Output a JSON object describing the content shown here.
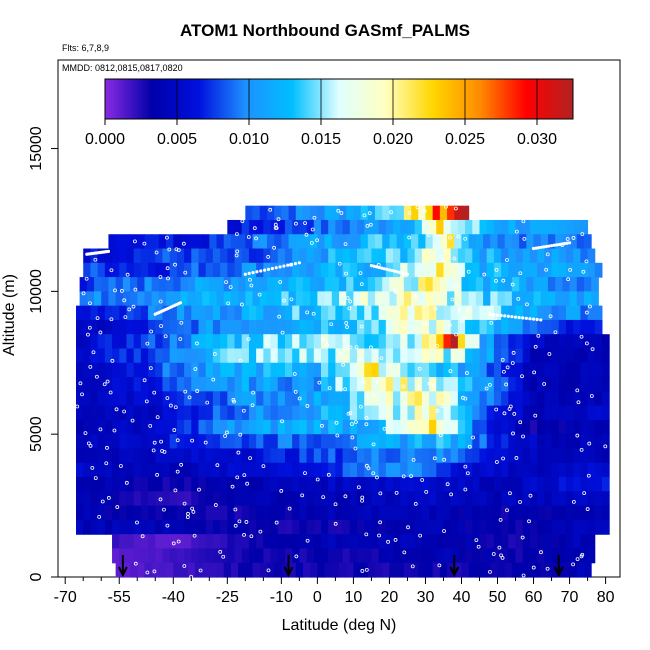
{
  "chart_data": {
    "type": "heatmap",
    "title": "ATOM1 Northbound GASmf_PALMS",
    "subtitle_flights": "Flts: 6,7,8,9",
    "subtitle_dates": "MMDD: 0812,0815,0817,0820",
    "xlabel": "Latitude (deg N)",
    "ylabel": "Altitude (m)",
    "xlim": [
      -72,
      84
    ],
    "ylim": [
      0,
      18100
    ],
    "x_ticks": [
      -70,
      -55,
      -40,
      -25,
      -10,
      0,
      10,
      20,
      30,
      40,
      50,
      60,
      70,
      80
    ],
    "x_minor_ticks": [
      -65,
      -60,
      -50,
      -45,
      -35,
      -30,
      -20,
      -15,
      -5,
      5,
      15,
      25,
      35,
      45,
      55,
      65,
      75
    ],
    "y_ticks": [
      0,
      5000,
      10000,
      15000
    ],
    "colorbar": {
      "min": 0,
      "max": 0.0325,
      "tick_values": [
        0.0,
        0.005,
        0.01,
        0.015,
        0.02,
        0.025,
        0.03
      ],
      "tick_labels": [
        "0.000",
        "0.005",
        "0.010",
        "0.015",
        "0.020",
        "0.025",
        "0.030"
      ],
      "colors": [
        "#8a2be2",
        "#0000aa",
        "#0010dd",
        "#1e90ff",
        "#00bfff",
        "#e0ffff",
        "#ffffc0",
        "#ffd700",
        "#ff8c00",
        "#ff0000",
        "#b22222"
      ]
    },
    "flight_date_markers_lat": [
      -54,
      -8,
      38,
      67
    ],
    "rows": [
      {
        "alt": 12500,
        "lat_min": -20,
        "lat_max": 41,
        "band": [
          [
            -20,
            0.008
          ],
          [
            0,
            0.01
          ],
          [
            15,
            0.013
          ],
          [
            25,
            0.018
          ],
          [
            32,
            0.024
          ],
          [
            37,
            0.029
          ],
          [
            40,
            0.032
          ]
        ]
      },
      {
        "alt": 12000,
        "lat_min": -25,
        "lat_max": 75,
        "band": [
          [
            -25,
            0.006
          ],
          [
            -5,
            0.008
          ],
          [
            15,
            0.01
          ],
          [
            28,
            0.014
          ],
          [
            34,
            0.02
          ],
          [
            38,
            0.016
          ],
          [
            50,
            0.012
          ],
          [
            65,
            0.01
          ]
        ]
      },
      {
        "alt": 11500,
        "lat_min": -58,
        "lat_max": 75,
        "band": [
          [
            -58,
            0.007
          ],
          [
            -35,
            0.006
          ],
          [
            -10,
            0.01
          ],
          [
            10,
            0.012
          ],
          [
            30,
            0.015
          ],
          [
            36,
            0.021
          ],
          [
            45,
            0.011
          ],
          [
            65,
            0.009
          ]
        ]
      },
      {
        "alt": 11000,
        "lat_min": -65,
        "lat_max": 77,
        "band": [
          [
            -65,
            0.006
          ],
          [
            -40,
            0.008
          ],
          [
            -15,
            0.007
          ],
          [
            5,
            0.012
          ],
          [
            25,
            0.014
          ],
          [
            35,
            0.019
          ],
          [
            45,
            0.012
          ],
          [
            70,
            0.01
          ]
        ]
      },
      {
        "alt": 10500,
        "lat_min": -65,
        "lat_max": 78,
        "band": [
          [
            -65,
            0.008
          ],
          [
            -45,
            0.007
          ],
          [
            -20,
            0.01
          ],
          [
            0,
            0.011
          ],
          [
            20,
            0.013
          ],
          [
            33,
            0.02
          ],
          [
            45,
            0.012
          ],
          [
            70,
            0.011
          ]
        ]
      },
      {
        "alt": 10000,
        "lat_min": -66,
        "lat_max": 78,
        "band": [
          [
            -66,
            0.007
          ],
          [
            -50,
            0.009
          ],
          [
            -25,
            0.011
          ],
          [
            0,
            0.013
          ],
          [
            20,
            0.015
          ],
          [
            30,
            0.019
          ],
          [
            45,
            0.013
          ],
          [
            60,
            0.011
          ],
          [
            75,
            0.01
          ]
        ]
      },
      {
        "alt": 9500,
        "lat_min": -66,
        "lat_max": 78,
        "band": [
          [
            -66,
            0.009
          ],
          [
            -45,
            0.011
          ],
          [
            -20,
            0.012
          ],
          [
            0,
            0.014
          ],
          [
            15,
            0.018
          ],
          [
            30,
            0.02
          ],
          [
            45,
            0.014
          ],
          [
            65,
            0.011
          ]
        ]
      },
      {
        "alt": 9000,
        "lat_min": -67,
        "lat_max": 78,
        "band": [
          [
            -67,
            0.006
          ],
          [
            -45,
            0.009
          ],
          [
            -25,
            0.011
          ],
          [
            -5,
            0.013
          ],
          [
            15,
            0.016
          ],
          [
            32,
            0.019
          ],
          [
            45,
            0.015
          ],
          [
            65,
            0.01
          ]
        ]
      },
      {
        "alt": 8500,
        "lat_min": -67,
        "lat_max": 78,
        "band": [
          [
            -67,
            0.004
          ],
          [
            -50,
            0.006
          ],
          [
            -30,
            0.01
          ],
          [
            -10,
            0.012
          ],
          [
            10,
            0.014
          ],
          [
            30,
            0.018
          ],
          [
            40,
            0.016
          ],
          [
            55,
            0.01
          ],
          [
            70,
            0.006
          ]
        ]
      },
      {
        "alt": 8000,
        "lat_min": -67,
        "lat_max": 80,
        "band": [
          [
            -67,
            0.005
          ],
          [
            -45,
            0.008
          ],
          [
            -25,
            0.013
          ],
          [
            -5,
            0.016
          ],
          [
            15,
            0.015
          ],
          [
            30,
            0.018
          ],
          [
            38,
            0.03
          ],
          [
            45,
            0.012
          ],
          [
            60,
            0.005
          ],
          [
            75,
            0.004
          ]
        ]
      },
      {
        "alt": 7500,
        "lat_min": -67,
        "lat_max": 80,
        "band": [
          [
            -67,
            0.005
          ],
          [
            -45,
            0.008
          ],
          [
            -25,
            0.014
          ],
          [
            -5,
            0.015
          ],
          [
            15,
            0.016
          ],
          [
            35,
            0.017
          ],
          [
            45,
            0.013
          ],
          [
            60,
            0.004
          ],
          [
            75,
            0.004
          ]
        ]
      },
      {
        "alt": 7000,
        "lat_min": -67,
        "lat_max": 80,
        "band": [
          [
            -67,
            0.004
          ],
          [
            -45,
            0.008
          ],
          [
            -20,
            0.012
          ],
          [
            0,
            0.012
          ],
          [
            15,
            0.02
          ],
          [
            30,
            0.014
          ],
          [
            45,
            0.01
          ],
          [
            60,
            0.004
          ],
          [
            75,
            0.004
          ]
        ]
      },
      {
        "alt": 6500,
        "lat_min": -67,
        "lat_max": 80,
        "band": [
          [
            -67,
            0.004
          ],
          [
            -45,
            0.007
          ],
          [
            -20,
            0.011
          ],
          [
            0,
            0.01
          ],
          [
            15,
            0.021
          ],
          [
            30,
            0.017
          ],
          [
            45,
            0.011
          ],
          [
            60,
            0.004
          ],
          [
            75,
            0.004
          ]
        ]
      },
      {
        "alt": 6000,
        "lat_min": -67,
        "lat_max": 80,
        "band": [
          [
            -67,
            0.004
          ],
          [
            -45,
            0.006
          ],
          [
            -20,
            0.01
          ],
          [
            0,
            0.011
          ],
          [
            15,
            0.016
          ],
          [
            32,
            0.019
          ],
          [
            45,
            0.01
          ],
          [
            60,
            0.004
          ],
          [
            75,
            0.004
          ]
        ]
      },
      {
        "alt": 5500,
        "lat_min": -67,
        "lat_max": 80,
        "band": [
          [
            -67,
            0.004
          ],
          [
            -45,
            0.005
          ],
          [
            -25,
            0.009
          ],
          [
            -5,
            0.011
          ],
          [
            15,
            0.014
          ],
          [
            32,
            0.018
          ],
          [
            45,
            0.009
          ],
          [
            60,
            0.004
          ],
          [
            75,
            0.005
          ]
        ]
      },
      {
        "alt": 5000,
        "lat_min": -67,
        "lat_max": 80,
        "band": [
          [
            -67,
            0.004
          ],
          [
            -45,
            0.005
          ],
          [
            -25,
            0.01
          ],
          [
            -5,
            0.012
          ],
          [
            15,
            0.012
          ],
          [
            32,
            0.02
          ],
          [
            45,
            0.008
          ],
          [
            60,
            0.003
          ],
          [
            75,
            0.004
          ]
        ]
      },
      {
        "alt": 4500,
        "lat_min": -67,
        "lat_max": 80,
        "band": [
          [
            -67,
            0.004
          ],
          [
            -45,
            0.006
          ],
          [
            -25,
            0.008
          ],
          [
            0,
            0.009
          ],
          [
            20,
            0.011
          ],
          [
            35,
            0.013
          ],
          [
            50,
            0.007
          ],
          [
            65,
            0.004
          ]
        ]
      },
      {
        "alt": 4000,
        "lat_min": -67,
        "lat_max": 80,
        "band": [
          [
            -67,
            0.004
          ],
          [
            -40,
            0.005
          ],
          [
            -20,
            0.006
          ],
          [
            5,
            0.008
          ],
          [
            25,
            0.01
          ],
          [
            40,
            0.009
          ],
          [
            55,
            0.005
          ],
          [
            70,
            0.004
          ]
        ]
      },
      {
        "alt": 3500,
        "lat_min": -67,
        "lat_max": 80,
        "band": [
          [
            -67,
            0.005
          ],
          [
            -40,
            0.004
          ],
          [
            -15,
            0.006
          ],
          [
            5,
            0.007
          ],
          [
            25,
            0.011
          ],
          [
            40,
            0.006
          ],
          [
            60,
            0.004
          ],
          [
            75,
            0.006
          ]
        ]
      },
      {
        "alt": 3000,
        "lat_min": -67,
        "lat_max": 80,
        "band": [
          [
            -67,
            0.004
          ],
          [
            -40,
            0.003
          ],
          [
            -15,
            0.004
          ],
          [
            10,
            0.005
          ],
          [
            30,
            0.006
          ],
          [
            50,
            0.004
          ],
          [
            70,
            0.006
          ]
        ]
      },
      {
        "alt": 2500,
        "lat_min": -67,
        "lat_max": 80,
        "band": [
          [
            -67,
            0.004
          ],
          [
            -40,
            0.002
          ],
          [
            -15,
            0.004
          ],
          [
            10,
            0.004
          ],
          [
            30,
            0.005
          ],
          [
            50,
            0.004
          ],
          [
            70,
            0.005
          ]
        ]
      },
      {
        "alt": 2000,
        "lat_min": -67,
        "lat_max": 80,
        "band": [
          [
            -67,
            0.004
          ],
          [
            -45,
            0.003
          ],
          [
            -20,
            0.003
          ],
          [
            5,
            0.004
          ],
          [
            30,
            0.004
          ],
          [
            55,
            0.003
          ],
          [
            72,
            0.004
          ]
        ]
      },
      {
        "alt": 1500,
        "lat_min": -67,
        "lat_max": 80,
        "band": [
          [
            -67,
            0.004
          ],
          [
            -45,
            0.004
          ],
          [
            -20,
            0.003
          ],
          [
            5,
            0.003
          ],
          [
            30,
            0.004
          ],
          [
            55,
            0.003
          ],
          [
            72,
            0.004
          ]
        ]
      },
      {
        "alt": 1000,
        "lat_min": -57,
        "lat_max": 77,
        "band": [
          [
            -57,
            0.002
          ],
          [
            -40,
            0.001
          ],
          [
            -20,
            0.003
          ],
          [
            5,
            0.004
          ],
          [
            30,
            0.004
          ],
          [
            55,
            0.003
          ],
          [
            72,
            0.004
          ]
        ]
      },
      {
        "alt": 500,
        "lat_min": -57,
        "lat_max": 77,
        "band": [
          [
            -57,
            0.001
          ],
          [
            -35,
            0.002
          ],
          [
            -15,
            0.003
          ],
          [
            10,
            0.003
          ],
          [
            35,
            0.004
          ],
          [
            60,
            0.003
          ],
          [
            72,
            0.004
          ]
        ]
      },
      {
        "alt": 0,
        "lat_min": -56,
        "lat_max": 76,
        "band": [
          [
            -56,
            0.001
          ],
          [
            -35,
            0.002
          ],
          [
            -15,
            0.003
          ],
          [
            10,
            0.003
          ],
          [
            35,
            0.003
          ],
          [
            60,
            0.003
          ],
          [
            72,
            0.004
          ]
        ]
      }
    ]
  }
}
